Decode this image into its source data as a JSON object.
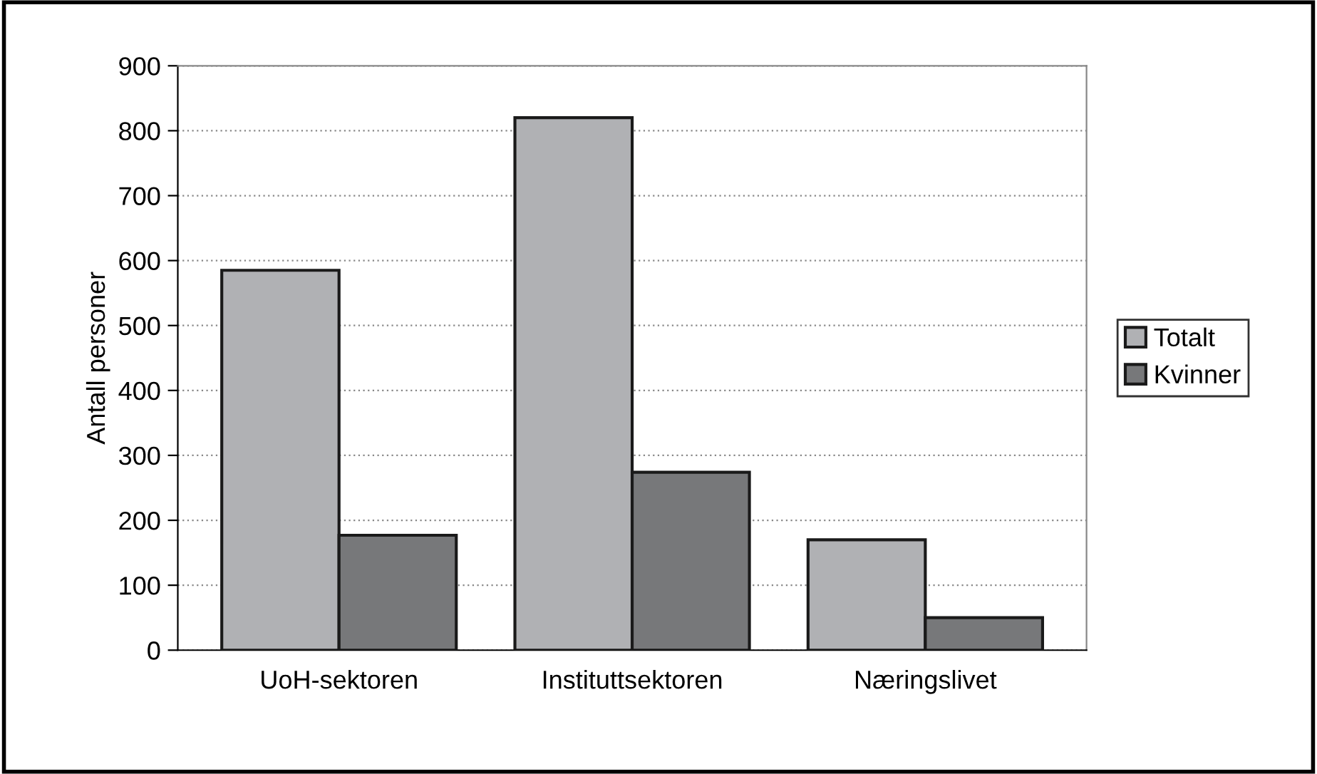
{
  "chart_data": {
    "type": "bar",
    "ylabel": "Antall personer",
    "categories": [
      "UoH-sektoren",
      "Instituttsektoren",
      "Næringslivet"
    ],
    "series": [
      {
        "name": "Totalt",
        "color": "#b0b1b4",
        "values": [
          585,
          820,
          170
        ]
      },
      {
        "name": "Kvinner",
        "color": "#77787a",
        "values": [
          177,
          274,
          50
        ]
      }
    ],
    "ylim": [
      0,
      900
    ],
    "yticks": [
      0,
      100,
      200,
      300,
      400,
      500,
      600,
      700,
      800,
      900
    ],
    "grid": "y",
    "legend": "right"
  }
}
